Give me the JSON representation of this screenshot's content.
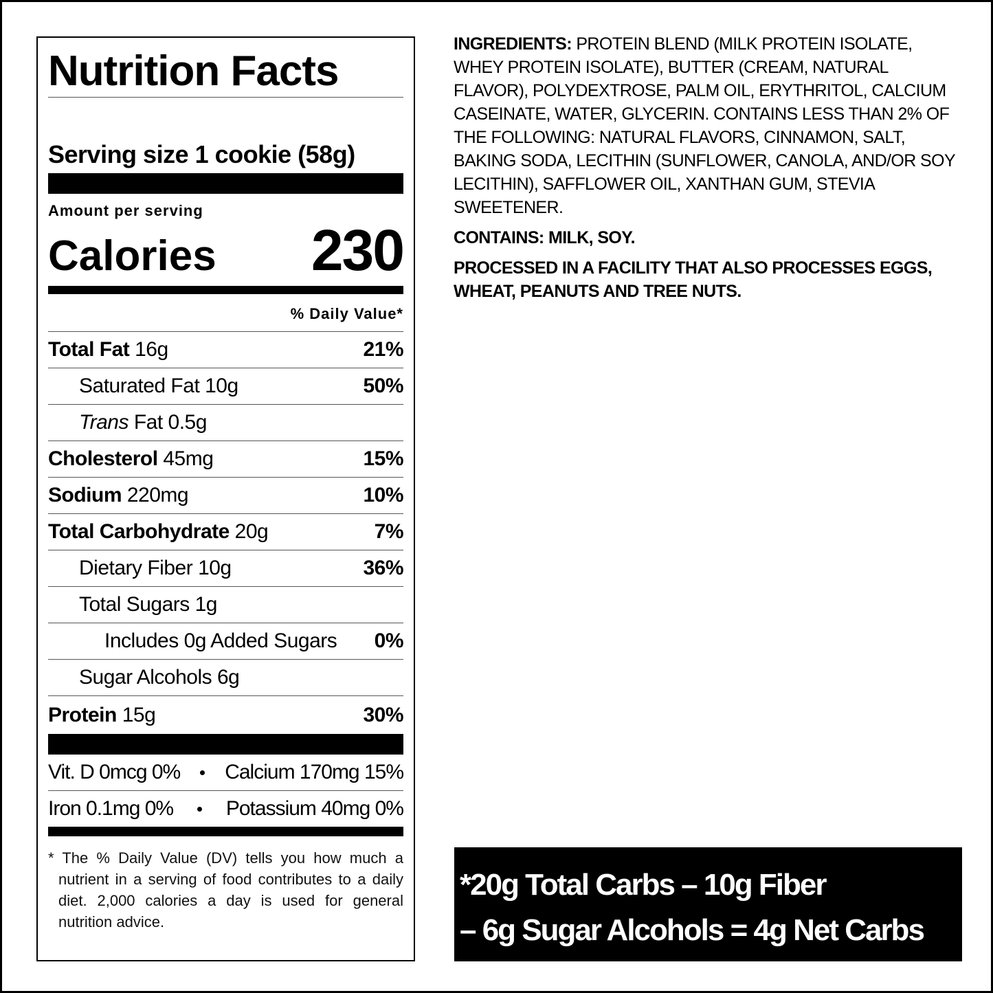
{
  "nutrition_facts": {
    "title": "Nutrition Facts",
    "serving_size": "Serving size 1 cookie (58g)",
    "amount_per_serving": "Amount per serving",
    "calories_label": "Calories",
    "calories": "230",
    "daily_value_header": "% Daily Value*",
    "rows": [
      {
        "name": "Total Fat",
        "amount": "16g",
        "dv": "21%",
        "sub": [
          {
            "name": "Saturated Fat",
            "amount": "10g",
            "dv": "50%"
          },
          {
            "name_italic": "Trans",
            "name": "Fat",
            "amount": "0.5g"
          }
        ]
      },
      {
        "name": "Cholesterol",
        "amount": "45mg",
        "dv": "15%"
      },
      {
        "name": "Sodium",
        "amount": "220mg",
        "dv": "10%"
      },
      {
        "name": "Total Carbohydrate",
        "amount": "20g",
        "dv": "7%",
        "sub": [
          {
            "name": "Dietary Fiber",
            "amount": "10g",
            "dv": "36%"
          },
          {
            "name": "Total Sugars",
            "amount": "1g",
            "sub": [
              {
                "name": "Includes 0g Added Sugars",
                "dv": "0%"
              }
            ]
          },
          {
            "name": "Sugar Alcohols",
            "amount": "6g"
          }
        ]
      },
      {
        "name": "Protein",
        "amount": "15g",
        "dv": "30%"
      }
    ],
    "vitamins": [
      [
        "Vit. D 0mcg 0%",
        "Calcium 170mg 15%"
      ],
      [
        "Iron 0.1mg 0%",
        "Potassium 40mg 0%"
      ]
    ],
    "footnote": "* The % Daily Value (DV) tells you how much a nutrient in a serving of food contributes to a daily diet. 2,000 calories a day is used for general nutrition advice."
  },
  "ingredients": {
    "label": "INGREDIENTS:",
    "text": "PROTEIN BLEND (MILK PROTEIN ISOLATE, WHEY PROTEIN ISOLATE), BUTTER (CREAM, NATURAL FLAVOR), POLYDEXTROSE, PALM OIL, ERYTHRITOL, CALCIUM CASEINATE, WATER, GLYCERIN. CONTAINS LESS THAN 2% OF THE FOLLOWING: NATURAL FLAVORS, CINNAMON, SALT, BAKING SODA, LECITHIN (SUNFLOWER, CANOLA, AND/OR SOY LECITHIN), SAFFLOWER OIL, XANTHAN GUM, STEVIA SWEETENER.",
    "contains": "CONTAINS: MILK, SOY.",
    "facility": "PROCESSED IN A FACILITY THAT ALSO PROCESSES EGGS, WHEAT, PEANUTS AND TREE NUTS."
  },
  "net_carbs": {
    "lines": [
      "*20g Total Carbs – 10g Fiber",
      "– 6g Sugar Alcohols = 4g Net Carbs"
    ]
  }
}
